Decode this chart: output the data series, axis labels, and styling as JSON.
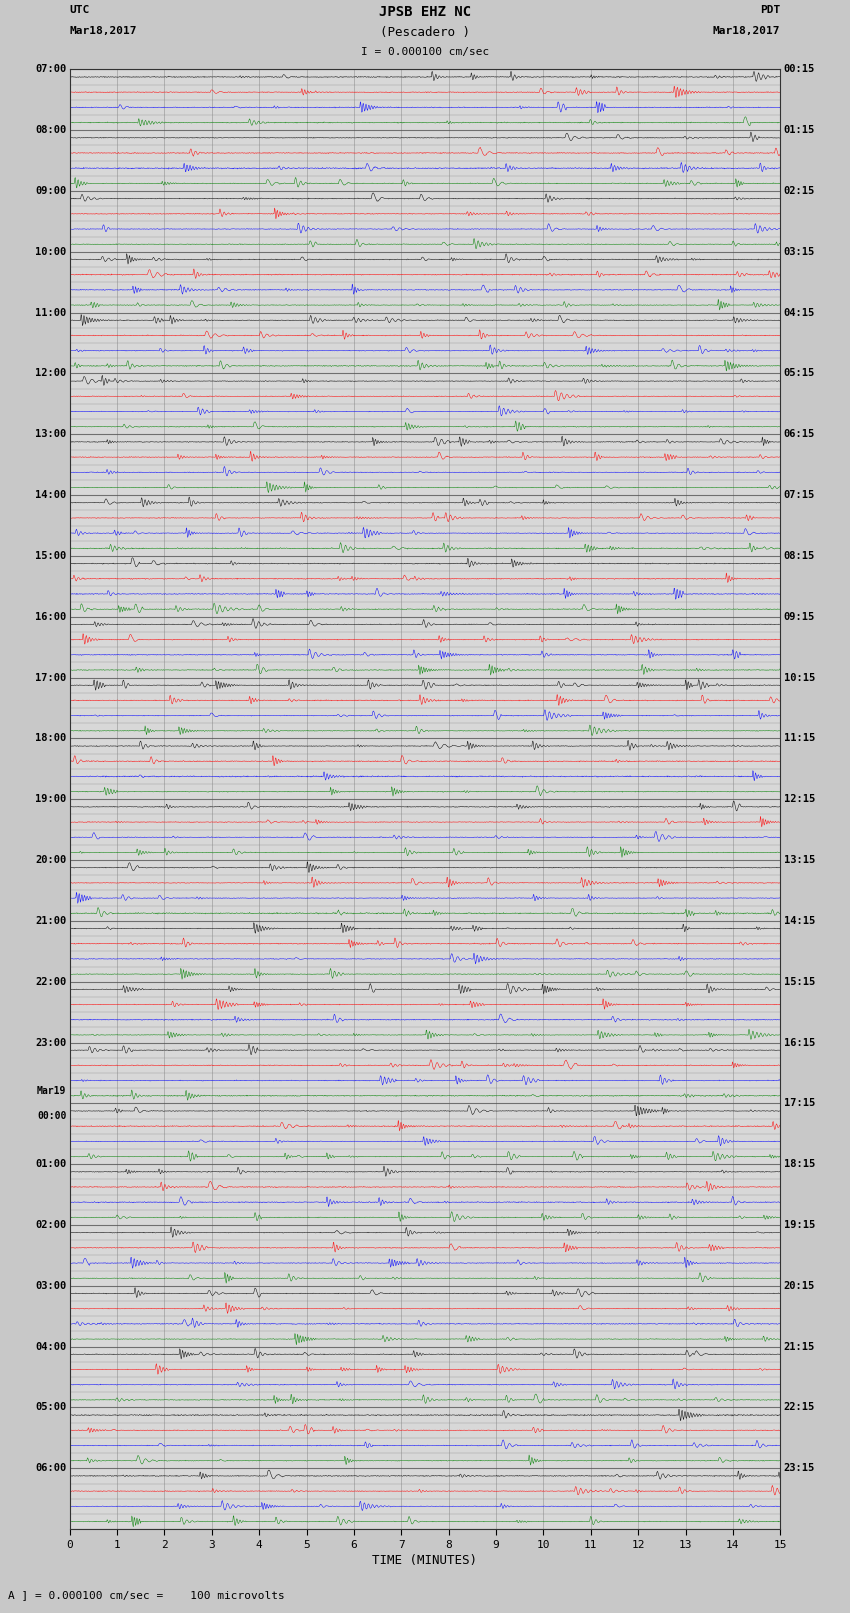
{
  "title_line1": "JPSB EHZ NC",
  "title_line2": "(Pescadero )",
  "scale_label": "I = 0.000100 cm/sec",
  "utc_label": "UTC",
  "utc_date": "Mar18,2017",
  "pdt_label": "PDT",
  "pdt_date": "Mar18,2017",
  "xlabel": "TIME (MINUTES)",
  "footer_label": "A ] = 0.000100 cm/sec =    100 microvolts",
  "x_min": 0,
  "x_max": 15,
  "x_ticks": [
    0,
    1,
    2,
    3,
    4,
    5,
    6,
    7,
    8,
    9,
    10,
    11,
    12,
    13,
    14,
    15
  ],
  "bg_color": "#c8c8c8",
  "plot_bg_color": "#d8d8d8",
  "colors": [
    "#000000",
    "#ff0000",
    "#0000ff",
    "#008000"
  ],
  "left_times": [
    "07:00",
    "",
    "",
    "",
    "08:00",
    "",
    "",
    "",
    "09:00",
    "",
    "",
    "",
    "10:00",
    "",
    "",
    "",
    "11:00",
    "",
    "",
    "",
    "12:00",
    "",
    "",
    "",
    "13:00",
    "",
    "",
    "",
    "14:00",
    "",
    "",
    "",
    "15:00",
    "",
    "",
    "",
    "16:00",
    "",
    "",
    "",
    "17:00",
    "",
    "",
    "",
    "18:00",
    "",
    "",
    "",
    "19:00",
    "",
    "",
    "",
    "20:00",
    "",
    "",
    "",
    "21:00",
    "",
    "",
    "",
    "22:00",
    "",
    "",
    "",
    "23:00",
    "",
    "",
    "",
    "Mar19",
    "00:00",
    "",
    "",
    "01:00",
    "",
    "",
    "",
    "02:00",
    "",
    "",
    "",
    "03:00",
    "",
    "",
    "",
    "04:00",
    "",
    "",
    "",
    "05:00",
    "",
    "",
    "",
    "06:00",
    "",
    "",
    ""
  ],
  "right_times": [
    "00:15",
    "",
    "",
    "",
    "01:15",
    "",
    "",
    "",
    "02:15",
    "",
    "",
    "",
    "03:15",
    "",
    "",
    "",
    "04:15",
    "",
    "",
    "",
    "05:15",
    "",
    "",
    "",
    "06:15",
    "",
    "",
    "",
    "07:15",
    "",
    "",
    "",
    "08:15",
    "",
    "",
    "",
    "09:15",
    "",
    "",
    "",
    "10:15",
    "",
    "",
    "",
    "11:15",
    "",
    "",
    "",
    "12:15",
    "",
    "",
    "",
    "13:15",
    "",
    "",
    "",
    "14:15",
    "",
    "",
    "",
    "15:15",
    "",
    "",
    "",
    "16:15",
    "",
    "",
    "",
    "17:15",
    "",
    "",
    "",
    "18:15",
    "",
    "",
    "",
    "19:15",
    "",
    "",
    "",
    "20:15",
    "",
    "",
    "",
    "21:15",
    "",
    "",
    "",
    "22:15",
    "",
    "",
    "",
    "23:15",
    "",
    "",
    ""
  ],
  "num_rows": 96,
  "grid_color": "#888888",
  "hour_line_color": "#555555"
}
